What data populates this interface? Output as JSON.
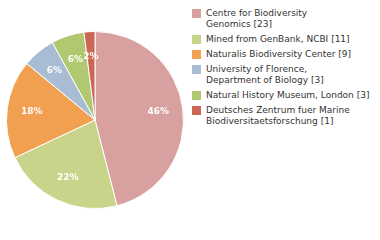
{
  "chart_data": {
    "type": "pie",
    "categories": [
      "Centre for Biodiversity\nGenomics [23]",
      "Mined from GenBank, NCBI [11]",
      "Naturalis Biodiversity Center [9]",
      "University of Florence,\nDepartment of Biology [3]",
      "Natural History Museum, London [3]",
      "Deutsches Zentrum fuer Marine\nBiodiversitaetsforschung [1]"
    ],
    "values": [
      46,
      22,
      18,
      6,
      6,
      2
    ],
    "value_labels": [
      "46%",
      "22%",
      "18%",
      "6%",
      "6%",
      "2%"
    ],
    "colors": [
      "#d9a0a0",
      "#c8d48a",
      "#f0a050",
      "#a8bcd4",
      "#b0c870",
      "#cc6655"
    ],
    "data_labels": true,
    "legend": "right"
  }
}
